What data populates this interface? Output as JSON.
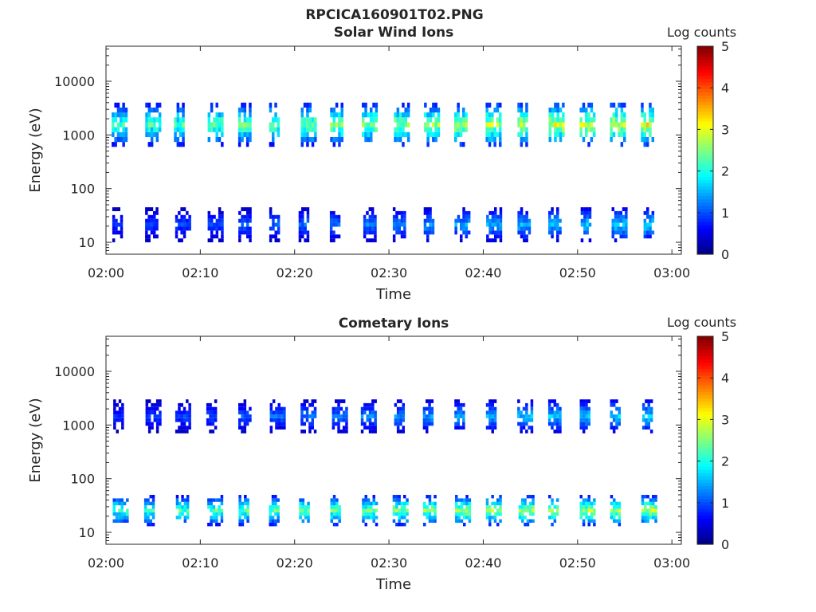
{
  "figure": {
    "title": "RPCICA160901T02.PNG"
  },
  "colorbar": {
    "label": "Log counts",
    "ticks": [
      "0",
      "1",
      "2",
      "3",
      "4",
      "5"
    ],
    "range": [
      0,
      5
    ],
    "colormap": "jet"
  },
  "chart_data": [
    {
      "type": "heatmap",
      "title": "Solar Wind Ions",
      "xlabel": "Time",
      "ylabel": "Energy (eV)",
      "x_ticks": [
        "02:00",
        "02:10",
        "02:20",
        "02:30",
        "02:40",
        "02:50",
        "03:00"
      ],
      "x_range_min": [
        0,
        61
      ],
      "y_ticks": [
        "10",
        "100",
        "1000",
        "10000"
      ],
      "y_scale": "log",
      "y_range": [
        6,
        45000
      ],
      "value_range": [
        0,
        5
      ],
      "scan_period_min": 3.3,
      "clusters": [
        {
          "name": "high-energy solar wind ions",
          "energy_eV": [
            600,
            4000
          ],
          "peak_log_counts": [
            2.5,
            3.5
          ]
        },
        {
          "name": "low-energy ions",
          "energy_eV": [
            10,
            45
          ],
          "peak_log_counts": [
            1.0,
            2.0
          ]
        }
      ]
    },
    {
      "type": "heatmap",
      "title": "Cometary Ions",
      "xlabel": "Time",
      "ylabel": "Energy (eV)",
      "x_ticks": [
        "02:00",
        "02:10",
        "02:20",
        "02:30",
        "02:40",
        "02:50",
        "03:00"
      ],
      "x_range_min": [
        0,
        61
      ],
      "y_ticks": [
        "10",
        "100",
        "1000",
        "10000"
      ],
      "y_scale": "log",
      "y_range": [
        6,
        45000
      ],
      "value_range": [
        0,
        5
      ],
      "scan_period_min": 3.3,
      "clusters": [
        {
          "name": "high-energy ions",
          "energy_eV": [
            700,
            3000
          ],
          "peak_log_counts": [
            1.0,
            2.0
          ]
        },
        {
          "name": "low-energy cometary ions",
          "energy_eV": [
            13,
            50
          ],
          "peak_log_counts": [
            2.5,
            3.2
          ]
        }
      ]
    }
  ]
}
